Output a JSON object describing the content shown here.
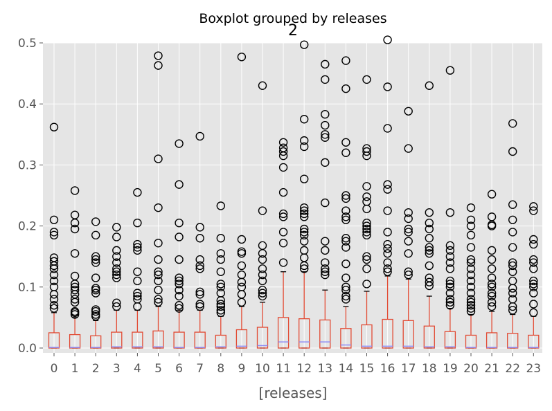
{
  "chart_data": {
    "type": "box",
    "suptitle": "Boxplot grouped by releases",
    "title": "2",
    "xlabel": "[releases]",
    "ylabel": "",
    "ylim": [
      0,
      0.5
    ],
    "yticks": [
      "0.0",
      "0.1",
      "0.2",
      "0.3",
      "0.4",
      "0.5"
    ],
    "grid": true,
    "style": "ggplot",
    "colors": {
      "background": "#e5e5e5",
      "grid": "#ffffff",
      "box": "#e24a33",
      "median": "#8e8bf5",
      "flier": "#000000",
      "tick_text": "#555555"
    },
    "categories": [
      "0",
      "1",
      "2",
      "3",
      "4",
      "5",
      "6",
      "7",
      "8",
      "9",
      "10",
      "11",
      "12",
      "13",
      "14",
      "15",
      "16",
      "17",
      "18",
      "19",
      "20",
      "21",
      "22",
      "23"
    ],
    "boxes": [
      {
        "label": "0",
        "q1": 0.0,
        "median": 0.001,
        "q3": 0.025,
        "whisker_low": 0,
        "whisker_high": 0.058,
        "fliers": [
          0.065,
          0.07,
          0.08,
          0.088,
          0.1,
          0.11,
          0.12,
          0.13,
          0.135,
          0.142,
          0.148,
          0.185,
          0.19,
          0.21,
          0.362
        ]
      },
      {
        "label": "1",
        "q1": 0.0,
        "median": 0.001,
        "q3": 0.022,
        "whisker_low": 0,
        "whisker_high": 0.05,
        "fliers": [
          0.055,
          0.058,
          0.06,
          0.075,
          0.08,
          0.088,
          0.095,
          0.1,
          0.105,
          0.118,
          0.155,
          0.195,
          0.205,
          0.218,
          0.258
        ]
      },
      {
        "label": "2",
        "q1": 0.0,
        "median": 0.001,
        "q3": 0.02,
        "whisker_low": 0,
        "whisker_high": 0.045,
        "fliers": [
          0.052,
          0.055,
          0.06,
          0.063,
          0.09,
          0.095,
          0.098,
          0.115,
          0.14,
          0.145,
          0.15,
          0.185,
          0.207
        ]
      },
      {
        "label": "3",
        "q1": 0.0,
        "median": 0.002,
        "q3": 0.026,
        "whisker_low": 0,
        "whisker_high": 0.062,
        "fliers": [
          0.068,
          0.074,
          0.115,
          0.12,
          0.125,
          0.13,
          0.14,
          0.15,
          0.16,
          0.182,
          0.198
        ]
      },
      {
        "label": "4",
        "q1": 0.0,
        "median": 0.002,
        "q3": 0.026,
        "whisker_low": 0,
        "whisker_high": 0.062,
        "fliers": [
          0.068,
          0.08,
          0.085,
          0.09,
          0.11,
          0.125,
          0.16,
          0.165,
          0.17,
          0.205,
          0.255
        ]
      },
      {
        "label": "5",
        "q1": 0.0,
        "median": 0.002,
        "q3": 0.028,
        "whisker_low": 0,
        "whisker_high": 0.068,
        "fliers": [
          0.075,
          0.08,
          0.095,
          0.11,
          0.12,
          0.125,
          0.145,
          0.172,
          0.23,
          0.31,
          0.463,
          0.479
        ]
      },
      {
        "label": "6",
        "q1": 0.0,
        "median": 0.001,
        "q3": 0.026,
        "whisker_low": 0,
        "whisker_high": 0.062,
        "fliers": [
          0.065,
          0.07,
          0.085,
          0.095,
          0.105,
          0.11,
          0.115,
          0.145,
          0.182,
          0.205,
          0.268,
          0.335
        ]
      },
      {
        "label": "7",
        "q1": 0.0,
        "median": 0.001,
        "q3": 0.026,
        "whisker_low": 0,
        "whisker_high": 0.062,
        "fliers": [
          0.068,
          0.072,
          0.088,
          0.092,
          0.13,
          0.135,
          0.145,
          0.18,
          0.198,
          0.347
        ]
      },
      {
        "label": "8",
        "q1": 0.0,
        "median": 0.002,
        "q3": 0.021,
        "whisker_low": 0,
        "whisker_high": 0.052,
        "fliers": [
          0.058,
          0.062,
          0.068,
          0.072,
          0.078,
          0.09,
          0.1,
          0.105,
          0.125,
          0.145,
          0.155,
          0.18,
          0.233
        ]
      },
      {
        "label": "9",
        "q1": 0.0,
        "median": 0.003,
        "q3": 0.03,
        "whisker_low": 0,
        "whisker_high": 0.068,
        "fliers": [
          0.075,
          0.088,
          0.1,
          0.108,
          0.12,
          0.135,
          0.155,
          0.158,
          0.178,
          0.477
        ]
      },
      {
        "label": "10",
        "q1": 0.0,
        "median": 0.004,
        "q3": 0.034,
        "whisker_low": 0,
        "whisker_high": 0.075,
        "fliers": [
          0.085,
          0.09,
          0.095,
          0.11,
          0.12,
          0.13,
          0.145,
          0.155,
          0.168,
          0.225,
          0.43
        ]
      },
      {
        "label": "11",
        "q1": 0.0,
        "median": 0.01,
        "q3": 0.05,
        "whisker_low": 0,
        "whisker_high": 0.125,
        "fliers": [
          0.14,
          0.172,
          0.19,
          0.215,
          0.22,
          0.255,
          0.296,
          0.315,
          0.322,
          0.328,
          0.337
        ]
      },
      {
        "label": "12",
        "q1": 0.0,
        "median": 0.01,
        "q3": 0.048,
        "whisker_low": 0,
        "whisker_high": 0.125,
        "fliers": [
          0.13,
          0.135,
          0.148,
          0.16,
          0.175,
          0.185,
          0.19,
          0.195,
          0.215,
          0.22,
          0.225,
          0.23,
          0.277,
          0.33,
          0.34,
          0.375,
          0.497
        ]
      },
      {
        "label": "13",
        "q1": 0.0,
        "median": 0.01,
        "q3": 0.046,
        "whisker_low": 0,
        "whisker_high": 0.095,
        "fliers": [
          0.12,
          0.125,
          0.13,
          0.14,
          0.16,
          0.175,
          0.238,
          0.304,
          0.345,
          0.35,
          0.365,
          0.383,
          0.44,
          0.465
        ]
      },
      {
        "label": "14",
        "q1": 0.0,
        "median": 0.005,
        "q3": 0.032,
        "whisker_low": 0,
        "whisker_high": 0.068,
        "fliers": [
          0.08,
          0.085,
          0.095,
          0.1,
          0.115,
          0.138,
          0.165,
          0.175,
          0.18,
          0.21,
          0.215,
          0.225,
          0.245,
          0.25,
          0.32,
          0.337,
          0.425,
          0.471
        ]
      },
      {
        "label": "15",
        "q1": 0.0,
        "median": 0.003,
        "q3": 0.038,
        "whisker_low": 0,
        "whisker_high": 0.093,
        "fliers": [
          0.105,
          0.13,
          0.145,
          0.15,
          0.185,
          0.19,
          0.195,
          0.2,
          0.205,
          0.228,
          0.24,
          0.248,
          0.265,
          0.315,
          0.322,
          0.327,
          0.44
        ]
      },
      {
        "label": "16",
        "q1": 0.0,
        "median": 0.003,
        "q3": 0.047,
        "whisker_low": 0,
        "whisker_high": 0.118,
        "fliers": [
          0.125,
          0.13,
          0.14,
          0.155,
          0.163,
          0.17,
          0.19,
          0.225,
          0.26,
          0.268,
          0.36,
          0.428,
          0.505
        ]
      },
      {
        "label": "17",
        "q1": 0.0,
        "median": 0.003,
        "q3": 0.045,
        "whisker_low": 0,
        "whisker_high": 0.113,
        "fliers": [
          0.12,
          0.125,
          0.155,
          0.175,
          0.19,
          0.195,
          0.212,
          0.222,
          0.327,
          0.388
        ]
      },
      {
        "label": "18",
        "q1": 0.0,
        "median": 0.002,
        "q3": 0.036,
        "whisker_low": 0,
        "whisker_high": 0.085,
        "fliers": [
          0.102,
          0.108,
          0.115,
          0.135,
          0.155,
          0.16,
          0.165,
          0.18,
          0.195,
          0.205,
          0.222,
          0.43
        ]
      },
      {
        "label": "19",
        "q1": 0.0,
        "median": 0.002,
        "q3": 0.027,
        "whisker_low": 0,
        "whisker_high": 0.065,
        "fliers": [
          0.07,
          0.075,
          0.08,
          0.09,
          0.1,
          0.105,
          0.11,
          0.13,
          0.14,
          0.15,
          0.16,
          0.168,
          0.222,
          0.455
        ]
      },
      {
        "label": "20",
        "q1": 0.0,
        "median": 0.001,
        "q3": 0.021,
        "whisker_low": 0,
        "whisker_high": 0.055,
        "fliers": [
          0.06,
          0.065,
          0.07,
          0.075,
          0.08,
          0.09,
          0.1,
          0.11,
          0.12,
          0.13,
          0.14,
          0.145,
          0.165,
          0.185,
          0.2,
          0.21,
          0.23
        ]
      },
      {
        "label": "21",
        "q1": 0.0,
        "median": 0.001,
        "q3": 0.025,
        "whisker_low": 0,
        "whisker_high": 0.06,
        "fliers": [
          0.068,
          0.075,
          0.085,
          0.09,
          0.1,
          0.105,
          0.115,
          0.13,
          0.145,
          0.16,
          0.2,
          0.202,
          0.215,
          0.252
        ]
      },
      {
        "label": "22",
        "q1": 0.0,
        "median": 0.001,
        "q3": 0.024,
        "whisker_low": 0,
        "whisker_high": 0.055,
        "fliers": [
          0.062,
          0.068,
          0.08,
          0.09,
          0.098,
          0.11,
          0.125,
          0.135,
          0.14,
          0.165,
          0.19,
          0.21,
          0.235,
          0.322,
          0.368
        ]
      },
      {
        "label": "23",
        "q1": 0.0,
        "median": 0.001,
        "q3": 0.021,
        "whisker_low": 0,
        "whisker_high": 0.052,
        "fliers": [
          0.058,
          0.072,
          0.09,
          0.1,
          0.105,
          0.11,
          0.13,
          0.14,
          0.145,
          0.17,
          0.178,
          0.225,
          0.232
        ]
      }
    ]
  }
}
